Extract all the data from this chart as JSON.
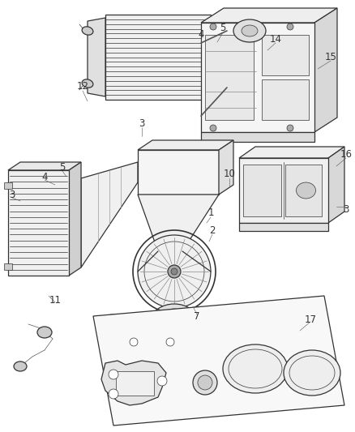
{
  "bg_color": "#ffffff",
  "line_color": "#333333",
  "fig_width": 4.38,
  "fig_height": 5.33,
  "dpi": 100,
  "label_fontsize": 8.5,
  "lw": 0.9,
  "tlw": 0.5
}
